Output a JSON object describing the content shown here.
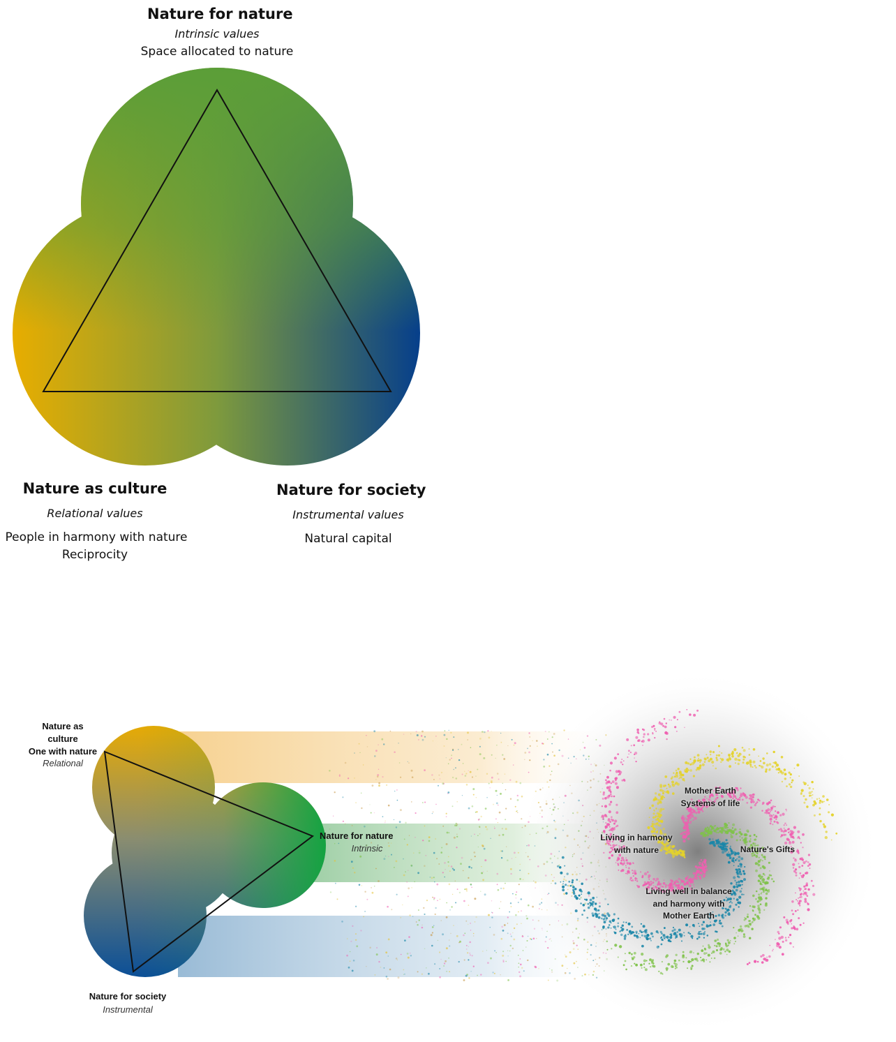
{
  "top_diagram": {
    "top": {
      "title": "Nature for nature",
      "subtitle": "Intrinsic values",
      "desc": "Space allocated to nature"
    },
    "left": {
      "title": "Nature as culture",
      "subtitle": "Relational values",
      "desc1": "People in harmony with nature",
      "desc2": "Reciprocity"
    },
    "right": {
      "title": "Nature for society",
      "subtitle": "Instrumental values",
      "desc": "Natural capital"
    }
  },
  "bottom_diagram": {
    "culture": {
      "title1": "Nature as",
      "title2": "culture",
      "title3": "One with nature",
      "subtitle": "Relational"
    },
    "nature": {
      "title": "Nature for nature",
      "subtitle": "Intrinsic"
    },
    "society": {
      "title": "Nature for society",
      "subtitle": "Instrumental"
    },
    "galaxy": {
      "label1a": "Mother Earth",
      "label1b": "Systems of life",
      "label2a": "Living in harmony",
      "label2b": "with nature",
      "label3": "Nature's Gifts",
      "label4a": "Living well in balance",
      "label4b": "and harmony with",
      "label4c": "Mother Earth"
    }
  },
  "colors": {
    "culture": "#e8ad00",
    "nature": "#3d9a3a",
    "society": "#0f4a8f"
  }
}
